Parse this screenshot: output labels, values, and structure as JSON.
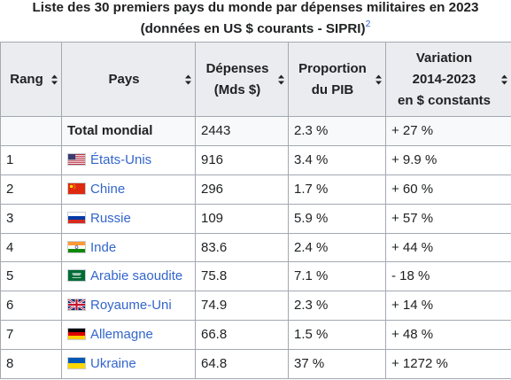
{
  "caption": {
    "title": "Liste des 30 premiers pays du monde par dépenses militaires en 2023",
    "subtitle": "(données en US $ courants - SIPRI)",
    "ref": "2"
  },
  "headers": {
    "rank": "Rang",
    "country": "Pays",
    "spend_l1": "Dépenses",
    "spend_l2": "(Mds $)",
    "gdp_l1": "Proportion",
    "gdp_l2": "du PIB",
    "var_l1": "Variation",
    "var_l2": "2014-2023",
    "var_l3": "en $ constants"
  },
  "total": {
    "rank": "",
    "country": "Total mondial",
    "spend": "2443",
    "gdp": "2.3 %",
    "var": "+ 27 %"
  },
  "rows": [
    {
      "rank": "1",
      "country": "États-Unis",
      "flag": "us-flag-icon",
      "spend": "916",
      "gdp": "3.4 %",
      "var": "+ 9.9 %"
    },
    {
      "rank": "2",
      "country": "Chine",
      "flag": "china-flag-icon",
      "spend": "296",
      "gdp": "1.7 %",
      "var": "+ 60 %"
    },
    {
      "rank": "3",
      "country": "Russie",
      "flag": "russia-flag-icon",
      "spend": "109",
      "gdp": "5.9 %",
      "var": "+ 57 %"
    },
    {
      "rank": "4",
      "country": "Inde",
      "flag": "india-flag-icon",
      "spend": "83.6",
      "gdp": "2.4 %",
      "var": "+ 44 %"
    },
    {
      "rank": "5",
      "country": "Arabie saoudite",
      "flag": "saudi-flag-icon",
      "spend": "75.8",
      "gdp": "7.1 %",
      "var": "- 18 %"
    },
    {
      "rank": "6",
      "country": "Royaume-Uni",
      "flag": "uk-flag-icon",
      "spend": "74.9",
      "gdp": "2.3 %",
      "var": "+ 14 %"
    },
    {
      "rank": "7",
      "country": "Allemagne",
      "flag": "germany-flag-icon",
      "spend": "66.8",
      "gdp": "1.5 %",
      "var": "+ 48 %"
    },
    {
      "rank": "8",
      "country": "Ukraine",
      "flag": "ukraine-flag-icon",
      "spend": "64.8",
      "gdp": "37 %",
      "var": "+ 1272 %"
    }
  ],
  "colors": {
    "link": "#3366cc",
    "header_bg": "#eaecf0",
    "border": "#a2a9b1"
  }
}
